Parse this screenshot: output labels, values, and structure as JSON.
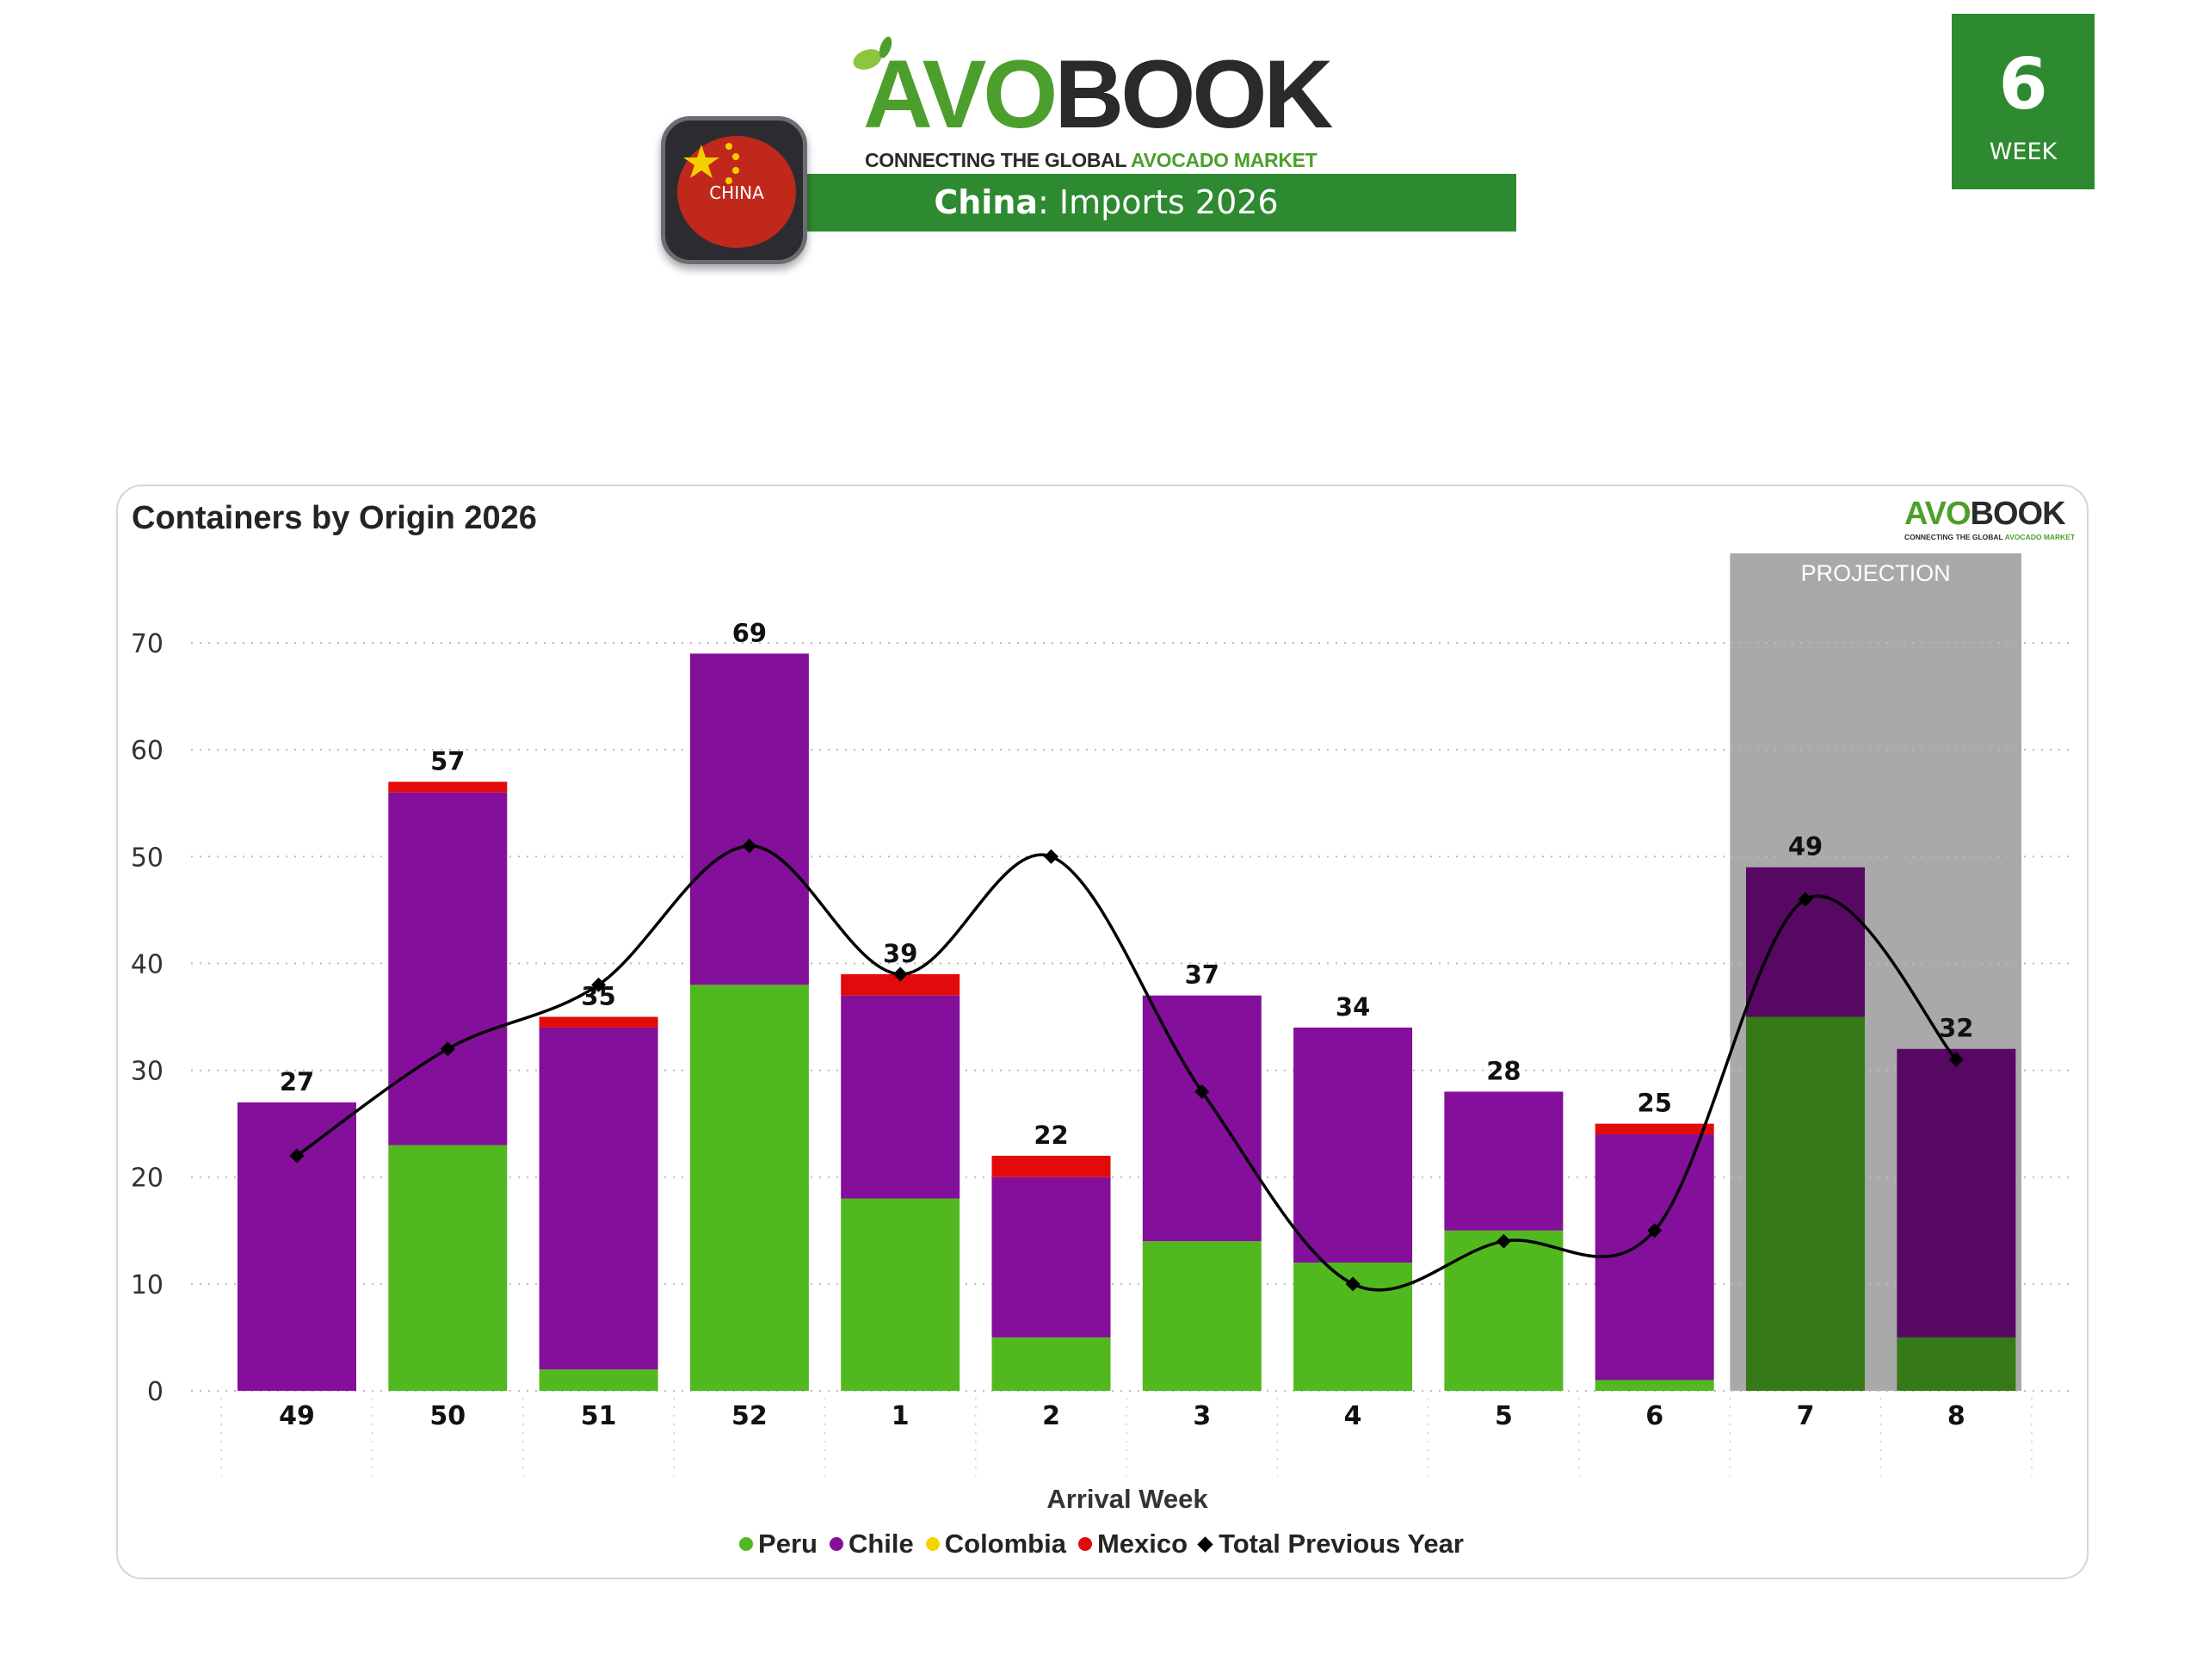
{
  "header": {
    "logo_brand_green": "AVO",
    "logo_brand_dark": "BOOK",
    "logo_tagline_dark": "CONNECTING THE GLOBAL ",
    "logo_tagline_green": "AVOCADO MARKET",
    "flag_label": "CHINA",
    "title_country": "China",
    "title_rest": ": Imports 2026",
    "week_number": "6",
    "week_label": "WEEK"
  },
  "colors": {
    "brand_green": "#2e8a30",
    "peru": "#52b81f",
    "chile": "#830f9a",
    "colombia": "#f2d600",
    "mexico": "#e20a0a",
    "previous_year": "#000000",
    "projection_band": "#a9a9a9"
  },
  "chart_data": {
    "type": "bar",
    "stacked": true,
    "title": "Containers by Origin 2026",
    "xlabel": "Arrival Week",
    "ylabel": "",
    "ylim": [
      0,
      70
    ],
    "yticks": [
      0,
      10,
      20,
      30,
      40,
      50,
      60,
      70
    ],
    "grid": true,
    "legend_placement": "bottom-center",
    "categories": [
      "49",
      "50",
      "51",
      "52",
      "1",
      "2",
      "3",
      "4",
      "5",
      "6",
      "7",
      "8"
    ],
    "series": [
      {
        "name": "Peru",
        "type": "bar",
        "values": [
          0,
          23,
          2,
          38,
          18,
          5,
          14,
          12,
          15,
          1,
          35,
          5
        ]
      },
      {
        "name": "Chile",
        "type": "bar",
        "values": [
          27,
          33,
          32,
          31,
          19,
          15,
          23,
          22,
          13,
          23,
          14,
          27
        ]
      },
      {
        "name": "Colombia",
        "type": "bar",
        "values": [
          0,
          0,
          0,
          0,
          0,
          0,
          0,
          0,
          0,
          0,
          0,
          0
        ]
      },
      {
        "name": "Mexico",
        "type": "bar",
        "values": [
          0,
          1,
          1,
          0,
          2,
          2,
          0,
          0,
          0,
          1,
          0,
          0
        ]
      },
      {
        "name": "Total Previous Year",
        "type": "line",
        "values": [
          22,
          32,
          38,
          51,
          39,
          50,
          28,
          10,
          14,
          15,
          46,
          31
        ]
      }
    ],
    "totals": [
      27,
      57,
      35,
      69,
      39,
      22,
      37,
      34,
      28,
      25,
      49,
      32
    ],
    "projection": {
      "label": "PROJECTION",
      "categories": [
        "7",
        "8"
      ]
    }
  }
}
